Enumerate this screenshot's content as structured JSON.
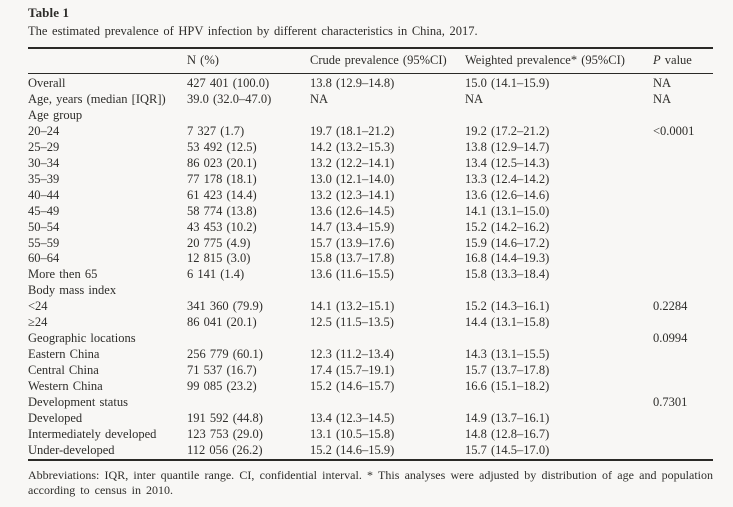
{
  "header": {
    "table_label": "Table 1",
    "caption": "The estimated prevalence of HPV infection by different characteristics in China, 2017."
  },
  "table": {
    "columns": [
      "",
      "N (%)",
      "Crude prevalence (95%CI)",
      "Weighted prevalence* (95%CI)",
      "P value"
    ],
    "p_column_italic_part": "P",
    "p_column_rest_part": " value",
    "rows": [
      {
        "label": "Overall",
        "n": "427 401 (100.0)",
        "crude": "13.8 (12.9–14.8)",
        "weighted": "15.0 (14.1–15.9)",
        "p": "NA"
      },
      {
        "label": "Age, years (median [IQR])",
        "n": "39.0 (32.0–47.0)",
        "crude": "NA",
        "weighted": "NA",
        "p": "NA"
      },
      {
        "label": "Age group",
        "n": "",
        "crude": "",
        "weighted": "",
        "p": ""
      },
      {
        "label": "20–24",
        "n": "7 327 (1.7)",
        "crude": "19.7 (18.1–21.2)",
        "weighted": "19.2 (17.2–21.2)",
        "p": "<0.0001"
      },
      {
        "label": "25–29",
        "n": "53 492 (12.5)",
        "crude": "14.2 (13.2–15.3)",
        "weighted": "13.8 (12.9–14.7)",
        "p": ""
      },
      {
        "label": "30–34",
        "n": "86 023 (20.1)",
        "crude": "13.2 (12.2–14.1)",
        "weighted": "13.4 (12.5–14.3)",
        "p": ""
      },
      {
        "label": "35–39",
        "n": "77 178 (18.1)",
        "crude": "13.0 (12.1–14.0)",
        "weighted": "13.3 (12.4–14.2)",
        "p": ""
      },
      {
        "label": "40–44",
        "n": "61 423 (14.4)",
        "crude": "13.2 (12.3–14.1)",
        "weighted": "13.6 (12.6–14.6)",
        "p": ""
      },
      {
        "label": "45–49",
        "n": "58 774 (13.8)",
        "crude": "13.6 (12.6–14.5)",
        "weighted": "14.1 (13.1–15.0)",
        "p": ""
      },
      {
        "label": "50–54",
        "n": "43 453 (10.2)",
        "crude": "14.7 (13.4–15.9)",
        "weighted": "15.2 (14.2–16.2)",
        "p": ""
      },
      {
        "label": "55–59",
        "n": "20 775 (4.9)",
        "crude": "15.7 (13.9–17.6)",
        "weighted": "15.9 (14.6–17.2)",
        "p": ""
      },
      {
        "label": "60–64",
        "n": "12 815 (3.0)",
        "crude": "15.8 (13.7–17.8)",
        "weighted": "16.8 (14.4–19.3)",
        "p": ""
      },
      {
        "label": "More then 65",
        "n": "6 141 (1.4)",
        "crude": "13.6 (11.6–15.5)",
        "weighted": "15.8 (13.3–18.4)",
        "p": ""
      },
      {
        "label": "Body mass index",
        "n": "",
        "crude": "",
        "weighted": "",
        "p": ""
      },
      {
        "label": "<24",
        "n": "341 360 (79.9)",
        "crude": "14.1 (13.2–15.1)",
        "weighted": "15.2 (14.3–16.1)",
        "p": "0.2284"
      },
      {
        "label": "≥24",
        "n": "86 041 (20.1)",
        "crude": "12.5 (11.5–13.5)",
        "weighted": "14.4 (13.1–15.8)",
        "p": ""
      },
      {
        "label": "Geographic locations",
        "n": "",
        "crude": "",
        "weighted": "",
        "p": "0.0994"
      },
      {
        "label": "Eastern China",
        "n": "256 779 (60.1)",
        "crude": "12.3 (11.2–13.4)",
        "weighted": "14.3 (13.1–15.5)",
        "p": ""
      },
      {
        "label": "Central China",
        "n": "71 537 (16.7)",
        "crude": "17.4 (15.7–19.1)",
        "weighted": "15.7 (13.7–17.8)",
        "p": ""
      },
      {
        "label": "Western China",
        "n": "99 085 (23.2)",
        "crude": "15.2 (14.6–15.7)",
        "weighted": "16.6 (15.1–18.2)",
        "p": ""
      },
      {
        "label": "Development status",
        "n": "",
        "crude": "",
        "weighted": "",
        "p": "0.7301"
      },
      {
        "label": "Developed",
        "n": "191 592 (44.8)",
        "crude": "13.4 (12.3–14.5)",
        "weighted": "14.9 (13.7–16.1)",
        "p": ""
      },
      {
        "label": "Intermediately developed",
        "n": "123 753 (29.0)",
        "crude": "13.1 (10.5–15.8)",
        "weighted": "14.8 (12.8–16.7)",
        "p": ""
      },
      {
        "label": "Under-developed",
        "n": "112 056 (26.2)",
        "crude": "15.2 (14.6–15.9)",
        "weighted": "15.7 (14.5–17.0)",
        "p": ""
      }
    ]
  },
  "footnote": {
    "text": "Abbreviations: IQR, inter quantile range. CI, confidential interval. * This analyses were adjusted by distribution of age and population according to census in 2010."
  }
}
